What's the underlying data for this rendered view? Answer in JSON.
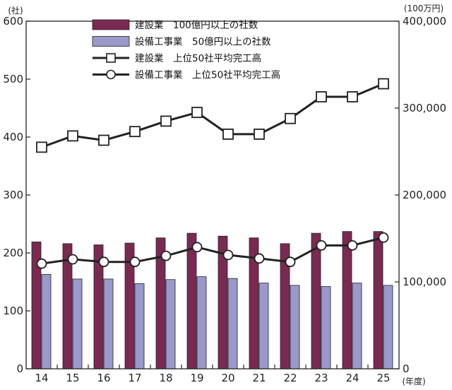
{
  "chart_data": {
    "type": "bar",
    "categories": [
      "14",
      "15",
      "16",
      "17",
      "18",
      "19",
      "20",
      "21",
      "22",
      "23",
      "24",
      "25"
    ],
    "x_unit": "(年度)",
    "y_left": {
      "unit": "(社)",
      "ylim": [
        0,
        600
      ],
      "ticks": [
        0,
        100,
        200,
        300,
        400,
        500,
        600
      ]
    },
    "y_right": {
      "unit": "(100万円)",
      "ylim": [
        0,
        400000
      ],
      "ticks": [
        0,
        100000,
        200000,
        300000,
        400000
      ],
      "tick_labels": [
        "0",
        "100,000",
        "200,000",
        "300,000",
        "400,000"
      ]
    },
    "series": [
      {
        "name": "建設業　100億円以上の社数",
        "kind": "bar",
        "axis": "left",
        "color": "#7a2a52",
        "values": [
          219,
          216,
          214,
          217,
          226,
          234,
          229,
          226,
          216,
          234,
          237,
          237
        ]
      },
      {
        "name": "設備工事業　50億円以上の社数",
        "kind": "bar",
        "axis": "left",
        "color": "#9999cc",
        "values": [
          163,
          155,
          155,
          147,
          154,
          159,
          156,
          148,
          144,
          142,
          148,
          144
        ]
      },
      {
        "name": "建設業　上位50社平均完工高",
        "kind": "line",
        "marker": "square",
        "axis": "right",
        "values": [
          255000,
          268000,
          263000,
          273000,
          285000,
          295000,
          270000,
          270000,
          288000,
          313000,
          313000,
          328000
        ]
      },
      {
        "name": "設備工事業　上位50社平均完工高",
        "kind": "line",
        "marker": "circle",
        "axis": "right",
        "values": [
          121000,
          126000,
          123000,
          123000,
          130000,
          140000,
          131000,
          127000,
          123000,
          142000,
          142000,
          151000
        ]
      }
    ],
    "grid": false,
    "legend_position": "top"
  }
}
